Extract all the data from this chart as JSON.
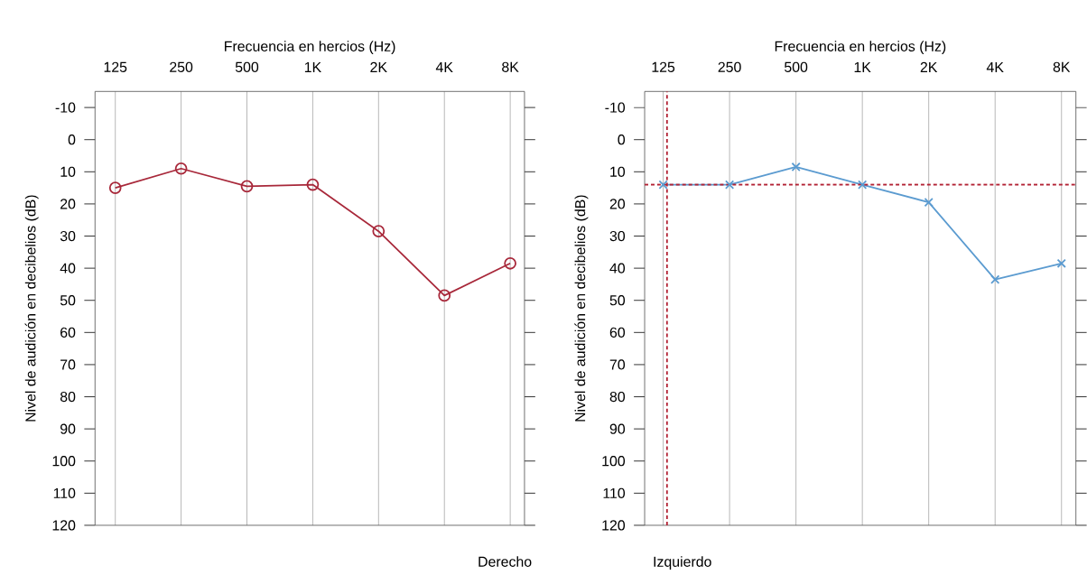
{
  "chart_data": [
    {
      "type": "line",
      "xlabel": "Frecuencia en hercios (Hz)",
      "ylabel": "Nivel de audición en decibelios (dB)",
      "log": "x",
      "x": [
        125,
        250,
        500,
        1000,
        2000,
        4000,
        8000
      ],
      "series": [
        {
          "color": "#a8283a",
          "values": [
            15,
            9,
            14.5,
            14,
            28.5,
            48.5,
            38.5
          ]
        }
      ],
      "xlim": [
        101,
        9300
      ],
      "xticks": [
        125,
        250,
        500,
        {
          "value": 1000,
          "label": "1K"
        },
        {
          "value": 2000,
          "label": "2K"
        },
        {
          "value": 4000,
          "label": "4K"
        },
        {
          "value": 8000,
          "label": "8K"
        }
      ],
      "ylim": [
        120,
        -15
      ],
      "yticks": [
        -10,
        0,
        10,
        20,
        30,
        40,
        50,
        60,
        70,
        80,
        90,
        100,
        110,
        120
      ],
      "grid": "x",
      "marker": "circle",
      "line_style": "solid",
      "annotations": [
        "Derecho"
      ]
    },
    {
      "type": "line",
      "xlabel": "Frecuencia en hercios (Hz)",
      "ylabel": "Nivel de audición en decibelios (dB)",
      "log": "x",
      "x": [
        125,
        250,
        500,
        1000,
        2000,
        4000,
        8000
      ],
      "series": [
        {
          "color": "#5b9bd0",
          "values": [
            14,
            14,
            8.5,
            14,
            19.5,
            43.5,
            38.5
          ]
        }
      ],
      "xlim": [
        103,
        9300
      ],
      "xticks": [
        125,
        250,
        500,
        {
          "value": 1000,
          "label": "1K"
        },
        {
          "value": 2000,
          "label": "2K"
        },
        {
          "value": 4000,
          "label": "4K"
        },
        {
          "value": 8000,
          "label": "8K"
        }
      ],
      "ylim": [
        120,
        -15
      ],
      "yticks": [
        -10,
        0,
        10,
        20,
        30,
        40,
        50,
        60,
        70,
        80,
        90,
        100,
        110,
        120
      ],
      "grid": "x",
      "marker": "cross",
      "line_style": "solid",
      "annotations": [
        "Izquierdo"
      ],
      "ref_lines": [
        {
          "axis": "y",
          "value": 14,
          "color": "#b22234",
          "line_style": "dashed"
        },
        {
          "axis": "x",
          "value": 130,
          "color": "#b22234",
          "line_style": "dashed"
        }
      ]
    }
  ]
}
